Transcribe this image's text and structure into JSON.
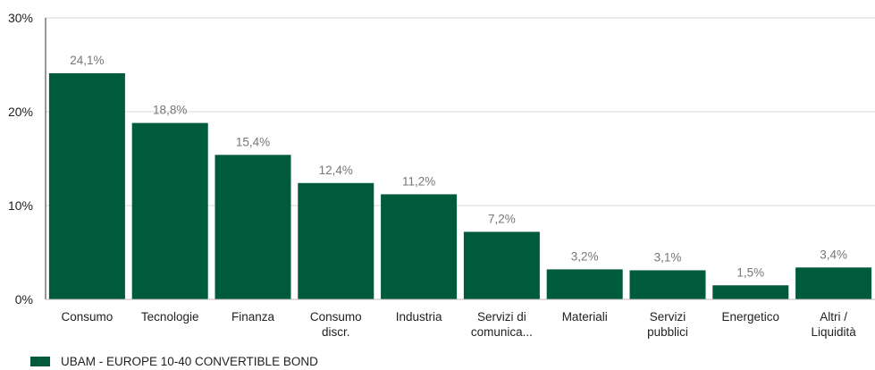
{
  "chart_data": {
    "type": "bar",
    "categories": [
      [
        "Consumo"
      ],
      [
        "Tecnologie"
      ],
      [
        "Finanza"
      ],
      [
        "Consumo",
        "discr."
      ],
      [
        "Industria"
      ],
      [
        "Servizi di",
        "comunica..."
      ],
      [
        "Materiali"
      ],
      [
        "Servizi",
        "pubblici"
      ],
      [
        "Energetico"
      ],
      [
        "Altri /",
        "Liquidità"
      ]
    ],
    "series": [
      {
        "name": "UBAM - EUROPE 10-40 CONVERTIBLE BOND",
        "values": [
          24.1,
          18.8,
          15.4,
          12.4,
          11.2,
          7.2,
          3.2,
          3.1,
          1.5,
          3.4
        ],
        "labels": [
          "24,1%",
          "18,8%",
          "15,4%",
          "12,4%",
          "11,2%",
          "7,2%",
          "3,2%",
          "3,1%",
          "1,5%",
          "3,4%"
        ],
        "color": "#005a3c"
      }
    ],
    "ylim": [
      0,
      30
    ],
    "yticks": [
      0,
      10,
      20,
      30
    ],
    "ytick_labels": [
      "0%",
      "10%",
      "20%",
      "30%"
    ],
    "grid": true,
    "legend_position": "bottom-left",
    "title": "",
    "xlabel": "",
    "ylabel": ""
  }
}
